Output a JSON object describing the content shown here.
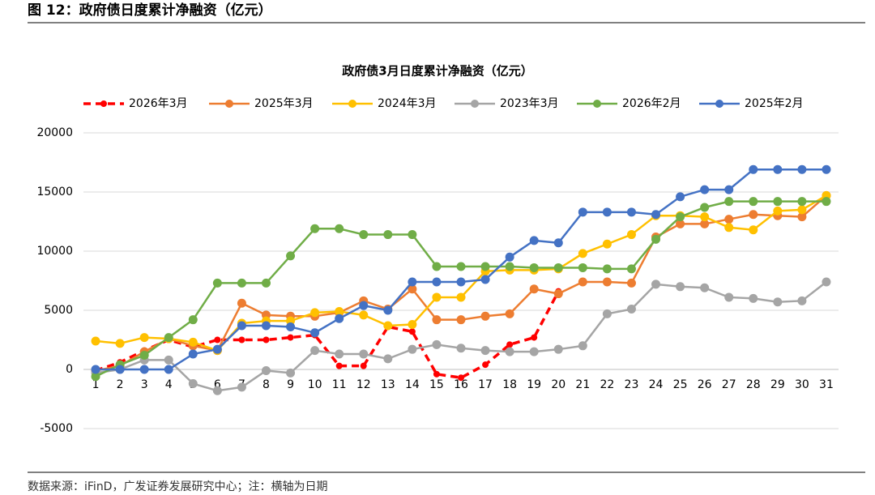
{
  "header": "图 12：政府债日度累计净融资（亿元）",
  "footer": "数据来源：iFinD，广发证券发展研究中心；注：横轴为日期",
  "chart_data": {
    "type": "line",
    "title": "政府债3月日度累计净融资（亿元）",
    "categories": [
      "1",
      "2",
      "3",
      "4",
      "5",
      "6",
      "7",
      "8",
      "9",
      "10",
      "11",
      "12",
      "13",
      "14",
      "15",
      "16",
      "17",
      "18",
      "19",
      "20",
      "21",
      "22",
      "23",
      "24",
      "25",
      "26",
      "27",
      "28",
      "29",
      "30",
      "31"
    ],
    "ylim": [
      -5000,
      20000
    ],
    "yticks": [
      -5000,
      0,
      5000,
      10000,
      15000,
      20000
    ],
    "grid": true,
    "legend": "top",
    "series": [
      {
        "name": "2026年3月",
        "color": "#ff0000",
        "style": "dashed",
        "values": [
          -100,
          600,
          1600,
          2500,
          1900,
          2500,
          2500,
          2500,
          2700,
          2900,
          300,
          300,
          3600,
          3200,
          -400,
          -700,
          400,
          2100,
          2700,
          6600,
          null,
          null,
          null,
          null,
          null,
          null,
          null,
          null,
          null,
          null,
          null
        ]
      },
      {
        "name": "2025年3月",
        "color": "#ed7d31",
        "style": "solid",
        "values": [
          -100,
          300,
          1500,
          2600,
          2000,
          1600,
          5600,
          4600,
          4500,
          4500,
          4800,
          5800,
          5100,
          6800,
          4200,
          4200,
          4500,
          4700,
          6800,
          6400,
          7400,
          7400,
          7300,
          11200,
          12300,
          12300,
          12700,
          13100,
          13000,
          12900,
          14700
        ]
      },
      {
        "name": "2024年3月",
        "color": "#ffc000",
        "style": "solid",
        "values": [
          2400,
          2200,
          2700,
          2600,
          2300,
          1600,
          3900,
          4100,
          4100,
          4800,
          4900,
          4600,
          3700,
          3800,
          6100,
          6100,
          8300,
          8400,
          8400,
          8500,
          9800,
          10600,
          11400,
          13000,
          13000,
          12900,
          12000,
          11800,
          13400,
          13500,
          14700
        ]
      },
      {
        "name": "2023年3月",
        "color": "#a5a5a5",
        "style": "solid",
        "values": [
          -300,
          0,
          800,
          800,
          -1200,
          -1800,
          -1500,
          -100,
          -300,
          1600,
          1300,
          1300,
          900,
          1700,
          2100,
          1800,
          1600,
          1500,
          1500,
          1700,
          2000,
          4700,
          5100,
          7200,
          7000,
          6900,
          6100,
          6000,
          5700,
          5800,
          7400
        ]
      },
      {
        "name": "2026年2月",
        "color": "#70ad47",
        "style": "solid",
        "values": [
          -600,
          400,
          1200,
          2700,
          4200,
          7300,
          7300,
          7300,
          9600,
          11900,
          11900,
          11400,
          11400,
          11400,
          8700,
          8700,
          8700,
          8700,
          8600,
          8600,
          8600,
          8500,
          8500,
          11000,
          12900,
          13700,
          14200,
          14200,
          14200,
          14200,
          14200
        ]
      },
      {
        "name": "2025年2月",
        "color": "#4472c4",
        "style": "solid",
        "values": [
          0,
          0,
          0,
          0,
          1300,
          1700,
          3700,
          3700,
          3600,
          3100,
          4300,
          5400,
          5000,
          7400,
          7400,
          7400,
          7600,
          9500,
          10900,
          10700,
          13300,
          13300,
          13300,
          13100,
          14600,
          15200,
          15200,
          16900,
          16900,
          16900,
          16900
        ]
      }
    ]
  }
}
